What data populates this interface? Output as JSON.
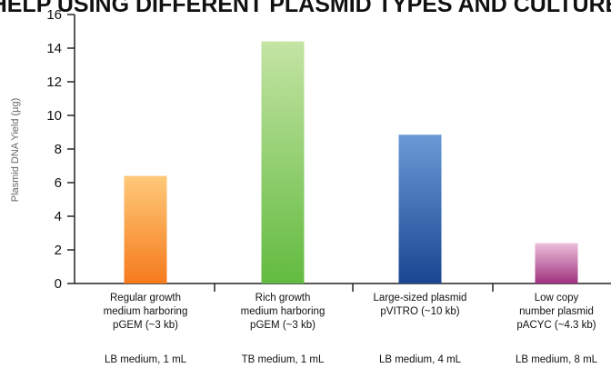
{
  "chart_data": {
    "type": "bar",
    "title": "HELP USING DIFFERENT PLASMID TYPES AND CULTURE",
    "ylabel": "Plasmid DNA Yield (µg)",
    "xlabel": "",
    "ylim": [
      0,
      16
    ],
    "yticks": [
      0,
      2,
      4,
      6,
      8,
      10,
      12,
      14,
      16
    ],
    "grid": false,
    "categories": [
      [
        "Regular growth",
        "medium harboring",
        "pGEM (~3 kb)"
      ],
      [
        "Rich growth",
        "medium harboring",
        "pGEM (~3 kb)"
      ],
      [
        "Large-sized plasmid",
        "pVITRO (~10 kb)"
      ],
      [
        "Low copy",
        "number plasmid",
        "pACYC (~4.3 kb)"
      ]
    ],
    "culture_conditions": [
      "LB medium, 1 mL",
      "TB medium, 1 mL",
      "LB medium, 4 mL",
      "LB medium, 8 mL"
    ],
    "values": [
      6.4,
      14.4,
      8.85,
      2.4
    ],
    "colors": [
      [
        "#ffc97a",
        "#f57a1c"
      ],
      [
        "#c4e4a4",
        "#62bb40"
      ],
      [
        "#6a9ad6",
        "#1a4591"
      ],
      [
        "#ecbfdc",
        "#a0327e"
      ]
    ]
  }
}
